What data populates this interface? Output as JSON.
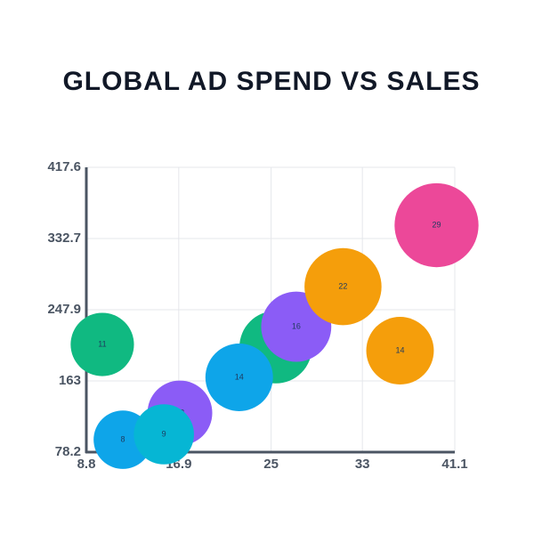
{
  "chart_data": {
    "type": "bubble",
    "title": "GLOBAL AD SPEND VS SALES",
    "x": [
      10.2,
      25.4,
      12.0,
      22.2,
      17.0,
      27.2,
      15.6,
      31.3,
      36.3,
      39.5
    ],
    "values": [
      206.5,
      203.3,
      93.0,
      167.3,
      124.9,
      227.7,
      99.4,
      275.4,
      199.1,
      348.6
    ],
    "sizes": [
      11,
      18,
      8,
      14,
      12,
      16,
      9,
      22,
      14,
      29
    ],
    "colors": [
      "#10b981",
      "#10b981",
      "#0ea5e9",
      "#0ea5e9",
      "#8b5cf6",
      "#8b5cf6",
      "#06b6d4",
      "#f59e0b",
      "#f59e0b",
      "#ec4899"
    ],
    "xlim": [
      8.8,
      41.1
    ],
    "xticks": [
      8.8,
      16.9,
      25,
      33,
      41.1
    ],
    "ylim": [
      78.2,
      417.6
    ],
    "yticks": [
      78.2,
      163,
      247.9,
      332.7,
      417.6
    ],
    "grid": true
  }
}
